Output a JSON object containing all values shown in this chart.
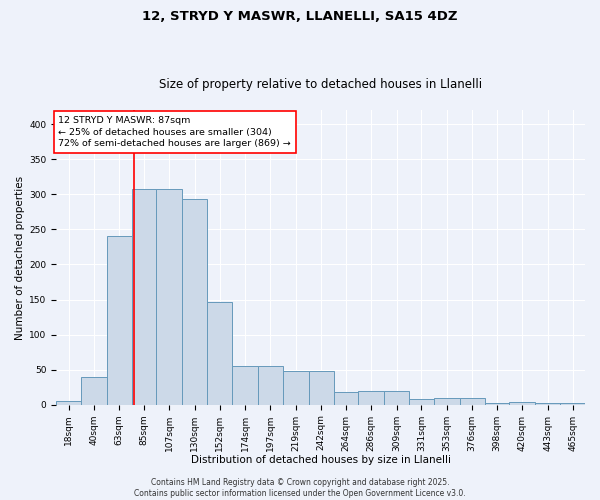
{
  "title_line1": "12, STRYD Y MASWR, LLANELLI, SA15 4DZ",
  "title_line2": "Size of property relative to detached houses in Llanelli",
  "xlabel": "Distribution of detached houses by size in Llanelli",
  "ylabel": "Number of detached properties",
  "bin_labels": [
    "18sqm",
    "40sqm",
    "63sqm",
    "85sqm",
    "107sqm",
    "130sqm",
    "152sqm",
    "174sqm",
    "197sqm",
    "219sqm",
    "242sqm",
    "264sqm",
    "286sqm",
    "309sqm",
    "331sqm",
    "353sqm",
    "376sqm",
    "398sqm",
    "420sqm",
    "443sqm",
    "465sqm"
  ],
  "bin_edges": [
    18,
    40,
    63,
    85,
    107,
    130,
    152,
    174,
    197,
    219,
    242,
    264,
    286,
    309,
    331,
    353,
    376,
    398,
    420,
    443,
    465
  ],
  "bar_heights": [
    6,
    39,
    240,
    307,
    307,
    293,
    146,
    55,
    55,
    48,
    48,
    18,
    19,
    19,
    8,
    10,
    10,
    3,
    4,
    3,
    3
  ],
  "bar_color": "#ccd9e8",
  "bar_edge_color": "#6699bb",
  "red_line_x": 87,
  "annotation_text": "12 STRYD Y MASWR: 87sqm\n← 25% of detached houses are smaller (304)\n72% of semi-detached houses are larger (869) →",
  "annotation_box_color": "white",
  "annotation_box_edge_color": "red",
  "ylim": [
    0,
    420
  ],
  "yticks": [
    0,
    50,
    100,
    150,
    200,
    250,
    300,
    350,
    400
  ],
  "background_color": "#eef2fa",
  "grid_color": "white",
  "copyright_text": "Contains HM Land Registry data © Crown copyright and database right 2025.\nContains public sector information licensed under the Open Government Licence v3.0.",
  "title_fontsize": 9.5,
  "subtitle_fontsize": 8.5,
  "xlabel_fontsize": 7.5,
  "ylabel_fontsize": 7.5,
  "tick_fontsize": 6.5,
  "annotation_fontsize": 6.8,
  "copyright_fontsize": 5.5
}
